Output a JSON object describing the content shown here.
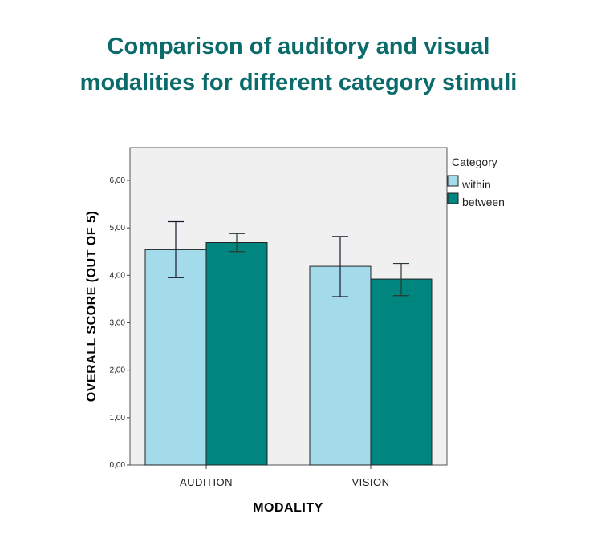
{
  "title_lines": [
    "Comparison of auditory and visual",
    "modalities for different category stimuli"
  ],
  "colors": {
    "title": "#0b6b6b",
    "plot_bg": "#f0f0f0",
    "within": "#a3dbea",
    "between": "#00857f"
  },
  "chart_data": {
    "type": "bar",
    "title": "Comparison of auditory and visual modalities for different category stimuli",
    "xlabel": "MODALITY",
    "ylabel": "OVERALL SCORE (OUT OF 5)",
    "categories": [
      "AUDITION",
      "VISION"
    ],
    "ylim": [
      0,
      6.5
    ],
    "yticks": [
      0,
      1,
      2,
      3,
      4,
      5,
      6
    ],
    "ytick_labels": [
      "0,00",
      "1,00",
      "2,00",
      "3,00",
      "4,00",
      "5,00",
      "6,00"
    ],
    "grid": false,
    "legend": {
      "title": "Category",
      "placement": "right"
    },
    "series": [
      {
        "name": "within",
        "values": [
          4.54,
          4.19
        ],
        "error_low": [
          3.95,
          3.55
        ],
        "error_high": [
          5.13,
          4.82
        ]
      },
      {
        "name": "between",
        "values": [
          4.69,
          3.92
        ],
        "error_low": [
          4.5,
          3.57
        ],
        "error_high": [
          4.88,
          4.25
        ]
      }
    ]
  }
}
